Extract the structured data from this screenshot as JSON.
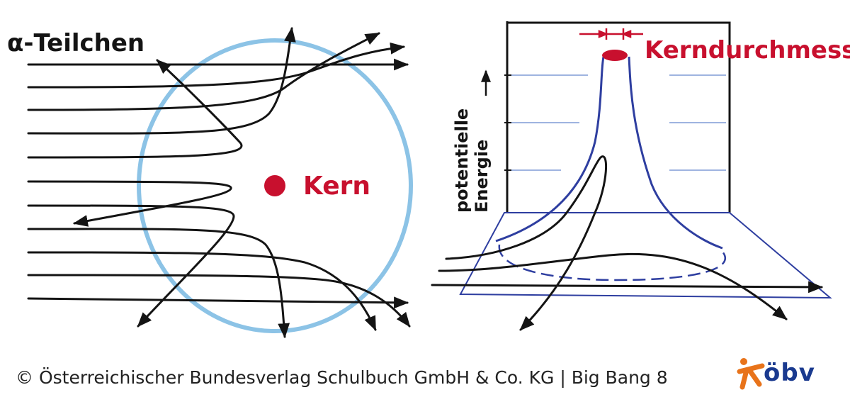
{
  "left_panel": {
    "alpha_label": "α-Teilchen",
    "nucleus_label": "Kern"
  },
  "right_panel": {
    "diameter_label": "Kerndurchmesser",
    "axis_label_line1": "potentielle",
    "axis_label_line2": "Energie"
  },
  "footer": {
    "copyright": "© Österreichischer Bundesverlag Schulbuch GmbH & Co. KG |  Big Bang 8"
  },
  "logo": {
    "text": "öbv"
  },
  "colors": {
    "ink": "#141414",
    "atom_circle": "#8cc3e6",
    "nucleus": "#c8102e",
    "potential_blue": "#2e3ea0",
    "logo_orange": "#e8731a",
    "logo_blue": "#1a3a8f"
  }
}
